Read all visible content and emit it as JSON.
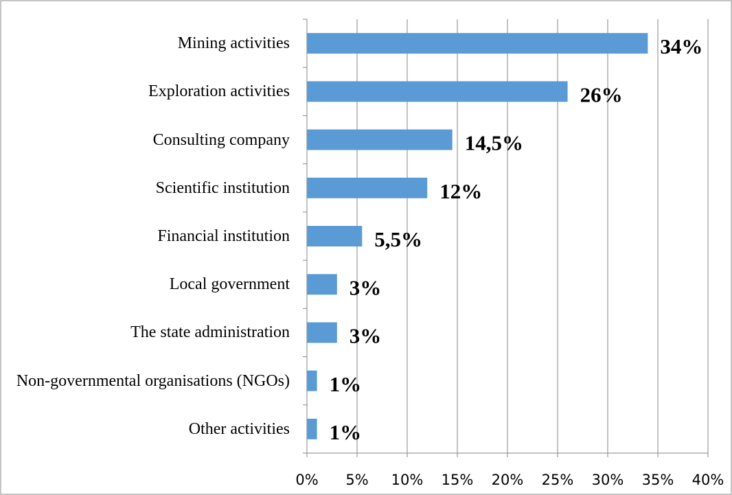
{
  "chart_data": {
    "type": "bar",
    "orientation": "horizontal",
    "categories": [
      "Mining activities",
      "Exploration activities",
      "Consulting company",
      "Scientific institution",
      "Financial institution",
      "Local government",
      "The state administration",
      "Non-governmental organisations (NGOs)",
      "Other activities"
    ],
    "values": [
      34,
      26,
      14.5,
      12,
      5.5,
      3,
      3,
      1,
      1
    ],
    "value_labels": [
      "34%",
      "26%",
      "14,5%",
      "12%",
      "5,5%",
      "3%",
      "3%",
      "1%",
      "1%"
    ],
    "color": "#5b9bd5",
    "xlim": [
      0,
      40
    ],
    "xticks": [
      {
        "value": 0,
        "label": "0%"
      },
      {
        "value": 5,
        "label": "5%"
      },
      {
        "value": 10,
        "label": "10%"
      },
      {
        "value": 15,
        "label": "15%"
      },
      {
        "value": 20,
        "label": "20%"
      },
      {
        "value": 25,
        "label": "25%"
      },
      {
        "value": 30,
        "label": "30%"
      },
      {
        "value": 35,
        "label": "35%"
      },
      {
        "value": 40,
        "label": "40%"
      }
    ],
    "grid": true
  }
}
